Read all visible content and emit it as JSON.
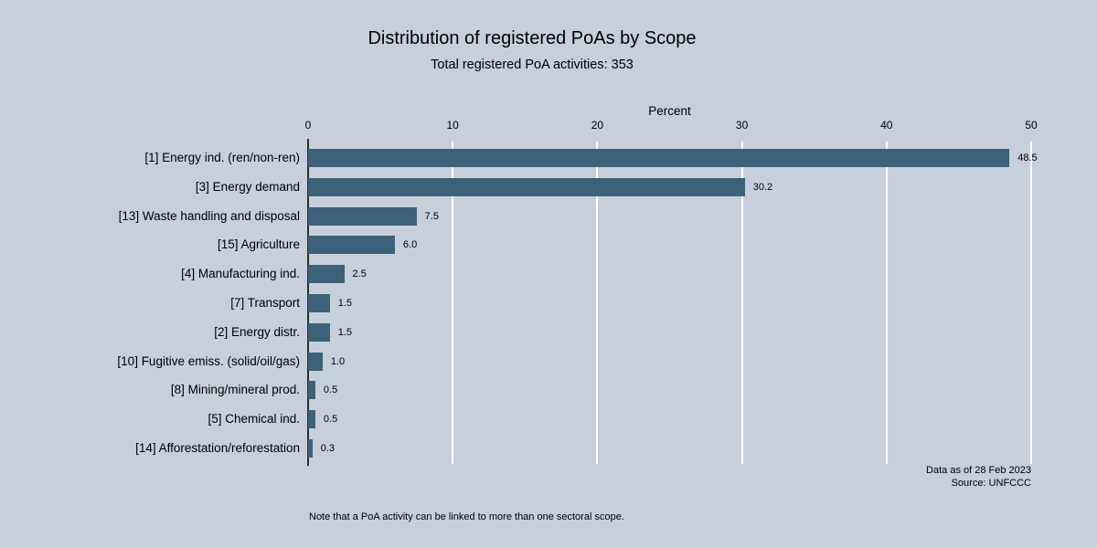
{
  "title": "Distribution of registered PoAs by Scope",
  "subtitle": "Total registered PoA activities: 353",
  "axis": {
    "label": "Percent",
    "ticks": [
      0,
      10,
      20,
      30,
      40,
      50
    ]
  },
  "chart_data": {
    "type": "bar",
    "orientation": "horizontal",
    "title": "Distribution of registered PoAs by Scope",
    "subtitle": "Total registered PoA activities: 353",
    "xlabel": "Percent",
    "xlim": [
      0,
      50
    ],
    "grid": true,
    "categories": [
      "[1] Energy ind. (ren/non-ren)",
      "[3] Energy demand",
      "[13] Waste handling and disposal",
      "[15] Agriculture",
      "[4] Manufacturing ind.",
      "[7] Transport",
      "[2] Energy distr.",
      "[10] Fugitive emiss. (solid/oil/gas)",
      "[8] Mining/mineral prod.",
      "[5] Chemical ind.",
      "[14] Afforestation/reforestation"
    ],
    "values": [
      48.5,
      30.2,
      7.5,
      6.0,
      2.5,
      1.5,
      1.5,
      1.0,
      0.5,
      0.5,
      0.3
    ],
    "value_labels": [
      "48.5",
      "30.2",
      "7.5",
      "6.0",
      "2.5",
      "1.5",
      "1.5",
      "1.0",
      "0.5",
      "0.5",
      "0.3"
    ]
  },
  "annotations": {
    "data_as_of": "Data as of 28 Feb 2023",
    "source": "Source: UNFCCC",
    "note": "Note that a PoA activity can be linked to more than one sectoral scope."
  },
  "colors": {
    "background": "#c6cfda",
    "bar": "#3d6178",
    "gridline": "#ffffff",
    "axis_line": "#2e2e2e",
    "text": "#000000"
  }
}
